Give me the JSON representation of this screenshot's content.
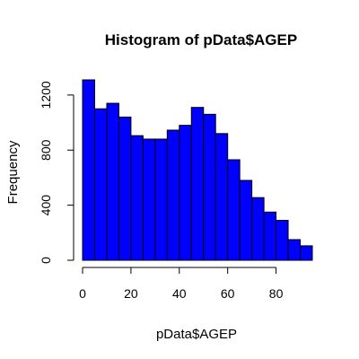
{
  "chart_data": {
    "type": "bar",
    "title": "Histogram of pData$AGEP",
    "xlabel": "pData$AGEP",
    "ylabel": "Frequency",
    "bins": [
      {
        "start": 0,
        "end": 5,
        "value": 1310
      },
      {
        "start": 5,
        "end": 10,
        "value": 1100
      },
      {
        "start": 10,
        "end": 15,
        "value": 1140
      },
      {
        "start": 15,
        "end": 20,
        "value": 1040
      },
      {
        "start": 20,
        "end": 25,
        "value": 905
      },
      {
        "start": 25,
        "end": 30,
        "value": 880
      },
      {
        "start": 30,
        "end": 35,
        "value": 880
      },
      {
        "start": 35,
        "end": 40,
        "value": 945
      },
      {
        "start": 40,
        "end": 45,
        "value": 980
      },
      {
        "start": 45,
        "end": 50,
        "value": 1110
      },
      {
        "start": 50,
        "end": 55,
        "value": 1060
      },
      {
        "start": 55,
        "end": 60,
        "value": 920
      },
      {
        "start": 60,
        "end": 65,
        "value": 730
      },
      {
        "start": 65,
        "end": 70,
        "value": 580
      },
      {
        "start": 70,
        "end": 75,
        "value": 455
      },
      {
        "start": 75,
        "end": 80,
        "value": 350
      },
      {
        "start": 80,
        "end": 85,
        "value": 290
      },
      {
        "start": 85,
        "end": 90,
        "value": 150
      },
      {
        "start": 90,
        "end": 95,
        "value": 105
      }
    ],
    "xlim": [
      0,
      95
    ],
    "ylim": [
      0,
      1310
    ],
    "x_ticks": [
      0,
      20,
      40,
      60,
      80
    ],
    "y_ticks": [
      0,
      400,
      800,
      1200
    ],
    "bar_color": "#0000ff",
    "border_color": "#000000",
    "grid": false,
    "legend": "none"
  }
}
